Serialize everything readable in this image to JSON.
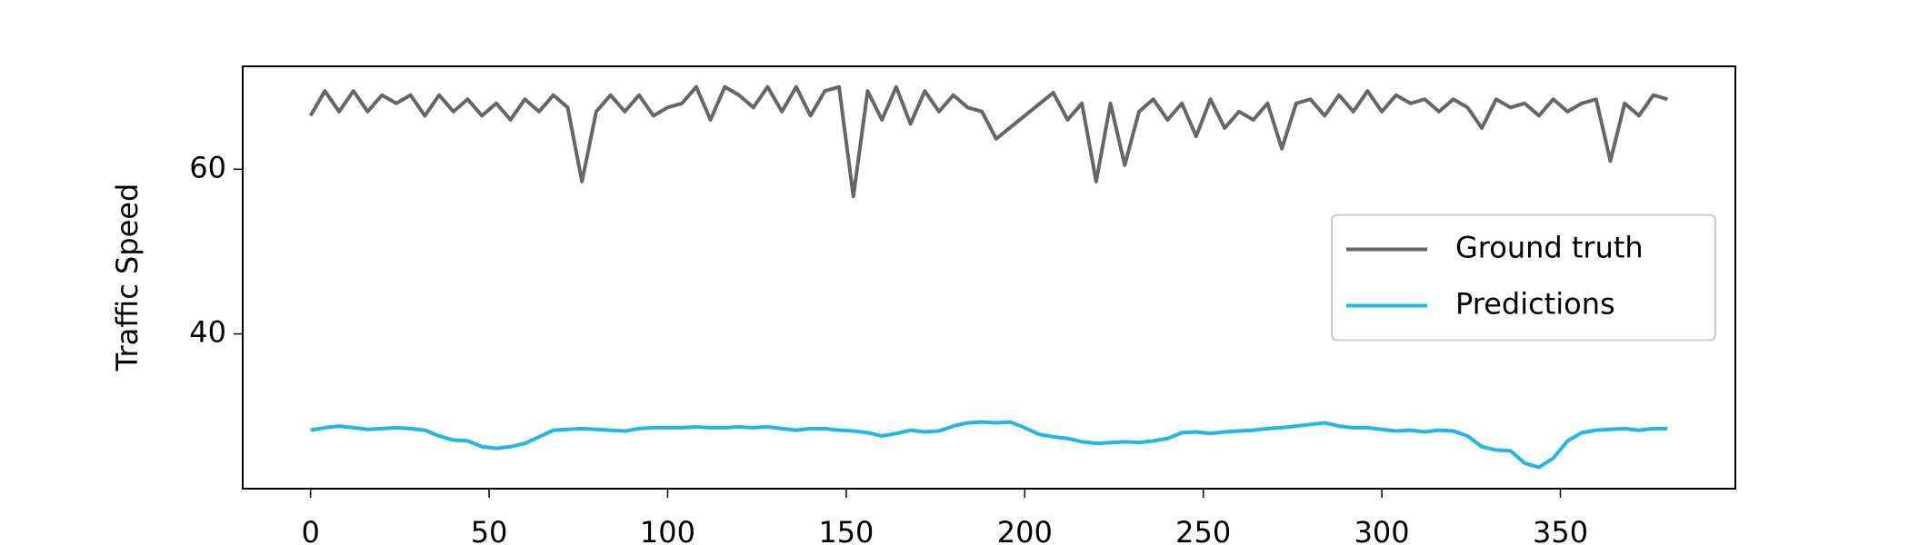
{
  "chart_data": {
    "type": "line",
    "y_label": "Traffic Speed",
    "x": [
      0,
      4,
      8,
      12,
      16,
      20,
      24,
      28,
      32,
      36,
      40,
      44,
      48,
      52,
      56,
      60,
      64,
      68,
      72,
      76,
      80,
      84,
      88,
      92,
      96,
      100,
      104,
      108,
      112,
      116,
      120,
      124,
      128,
      132,
      136,
      140,
      144,
      148,
      152,
      156,
      160,
      164,
      168,
      172,
      176,
      180,
      184,
      188,
      192,
      196,
      200,
      204,
      208,
      212,
      216,
      220,
      224,
      228,
      232,
      236,
      240,
      244,
      248,
      252,
      256,
      260,
      264,
      268,
      272,
      276,
      280,
      284,
      288,
      292,
      296,
      300,
      304,
      308,
      312,
      316,
      320,
      324,
      328,
      332,
      336,
      340,
      344,
      348,
      352,
      356,
      360,
      364,
      368,
      372,
      376,
      380
    ],
    "series": [
      {
        "name": "Ground truth",
        "color": "#666666",
        "values": [
          66.5,
          69.5,
          67,
          69.5,
          67,
          69,
          68,
          69,
          66.5,
          69,
          67,
          68.5,
          66.5,
          68,
          66,
          68.5,
          67,
          69,
          67.5,
          58.5,
          67,
          69,
          67,
          69,
          66.5,
          67.5,
          68,
          70,
          66,
          70,
          69,
          67.5,
          70,
          67,
          70,
          66.5,
          69.5,
          70,
          56.7,
          69.5,
          66,
          70,
          65.5,
          69.5,
          67,
          69,
          67.5,
          67,
          63.7,
          65.1,
          66.5,
          67.9,
          69.3,
          66,
          68,
          58.5,
          68,
          60.5,
          67,
          68.5,
          66,
          68,
          64,
          68.5,
          65,
          67,
          66,
          68,
          62.5,
          68,
          68.5,
          66.5,
          69,
          67,
          69.5,
          67,
          69,
          68,
          68.5,
          67,
          68.5,
          67.5,
          65,
          68.5,
          67.5,
          68,
          66.5,
          68.5,
          67,
          68,
          68.5,
          61,
          68,
          66.5,
          69,
          68.5
        ]
      },
      {
        "name": "Predictions",
        "color": "#1bb8ec",
        "values": [
          28.3,
          28.6,
          28.8,
          28.6,
          28.4,
          28.5,
          28.6,
          28.5,
          28.3,
          27.6,
          27.1,
          27.0,
          26.3,
          26.1,
          26.3,
          26.7,
          27.5,
          28.3,
          28.4,
          28.5,
          28.4,
          28.3,
          28.2,
          28.5,
          28.6,
          28.6,
          28.6,
          28.7,
          28.6,
          28.6,
          28.7,
          28.6,
          28.7,
          28.5,
          28.3,
          28.5,
          28.5,
          28.3,
          28.2,
          28.0,
          27.6,
          27.9,
          28.3,
          28.1,
          28.2,
          28.8,
          29.2,
          29.3,
          29.2,
          29.3,
          28.6,
          27.8,
          27.5,
          27.3,
          26.9,
          26.7,
          26.8,
          26.9,
          26.8,
          27.0,
          27.3,
          28.0,
          28.1,
          27.9,
          28.1,
          28.2,
          28.3,
          28.5,
          28.6,
          28.8,
          29.0,
          29.2,
          28.8,
          28.6,
          28.6,
          28.4,
          28.2,
          28.3,
          28.1,
          28.3,
          28.2,
          27.6,
          26.3,
          25.9,
          25.8,
          24.3,
          23.8,
          24.9,
          27.0,
          28.0,
          28.3,
          28.4,
          28.5,
          28.3,
          28.5,
          28.5
        ]
      }
    ],
    "xlim": [
      -19,
      399
    ],
    "ylim": [
      21.2,
      72.5
    ],
    "xticks": [
      0,
      50,
      100,
      150,
      200,
      250,
      300,
      350
    ],
    "yticks": [
      40,
      60
    ],
    "legend": "center right"
  }
}
